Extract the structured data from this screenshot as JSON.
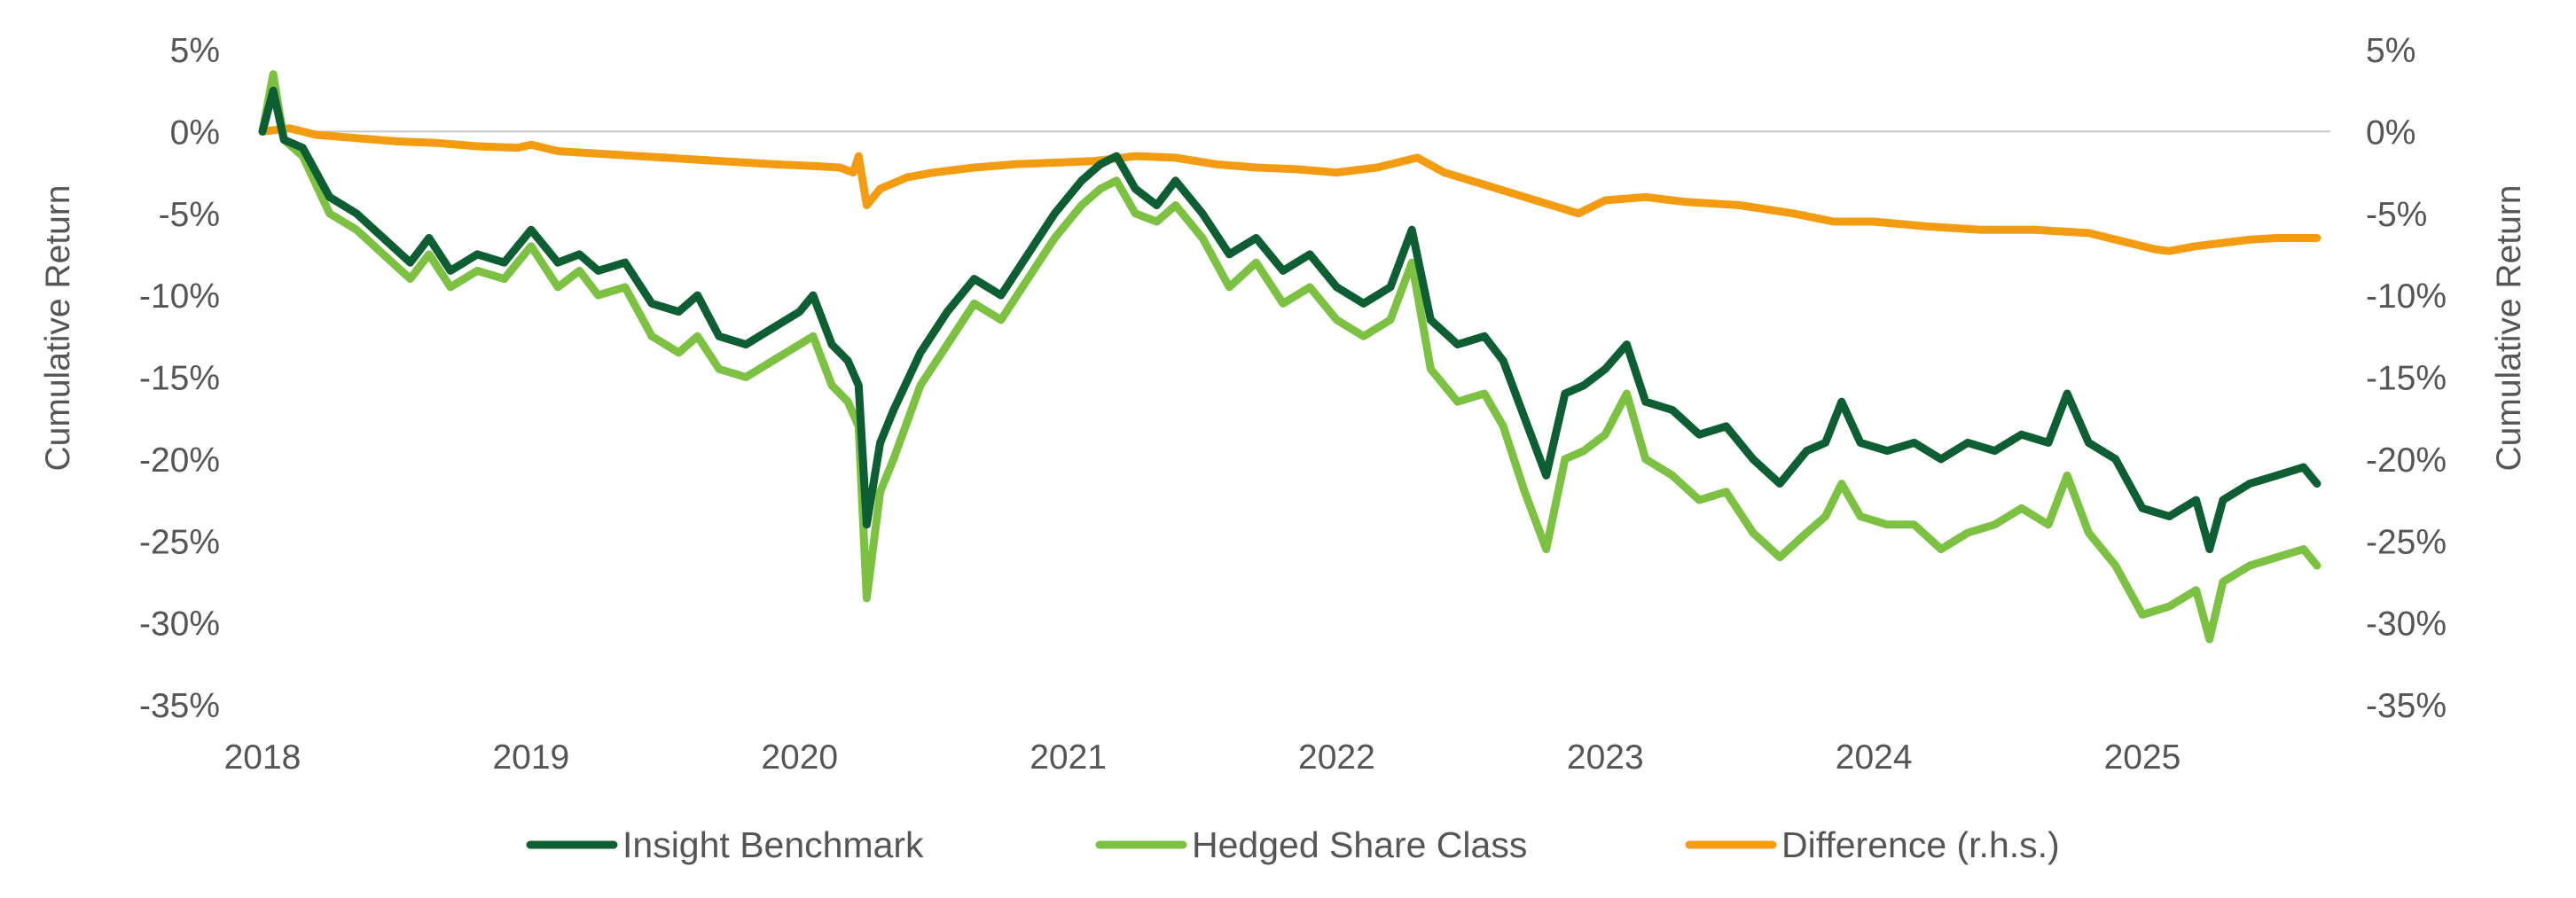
{
  "chart_data": {
    "type": "line",
    "title": "",
    "xlabel": "",
    "ylabel": "Cumulative Return",
    "y2label": "Cumulative Return",
    "x_ticks": [
      "2018",
      "2019",
      "2020",
      "2021",
      "2022",
      "2023",
      "2024",
      "2025"
    ],
    "x_tick_values": [
      2018,
      2019,
      2020,
      2021,
      2022,
      2023,
      2024,
      2025
    ],
    "xlim": [
      2018,
      2025.7
    ],
    "ylim": [
      -35,
      5
    ],
    "y2lim": [
      -35,
      5
    ],
    "y_ticks": [
      5,
      0,
      -5,
      -10,
      -15,
      -20,
      -25,
      -30,
      -35
    ],
    "y_tick_labels": [
      "5%",
      "0%",
      "-5%",
      "-10%",
      "-15%",
      "-20%",
      "-25%",
      "-30%",
      "-35%"
    ],
    "y2_ticks": [
      5,
      0,
      -5,
      -10,
      -15,
      -20,
      -25,
      -30,
      -35
    ],
    "y2_tick_labels": [
      "5%",
      "0%",
      "-5%",
      "-10%",
      "-15%",
      "-20%",
      "-25%",
      "-30%",
      "-35%"
    ],
    "zero_line": true,
    "grid": false,
    "legend_position": "bottom",
    "series": [
      {
        "name": "Insight Benchmark",
        "color": "#0d5e32",
        "axis": "left",
        "x": [
          2018.0,
          2018.04,
          2018.08,
          2018.15,
          2018.25,
          2018.35,
          2018.45,
          2018.55,
          2018.62,
          2018.7,
          2018.8,
          2018.9,
          2019.0,
          2019.1,
          2019.18,
          2019.25,
          2019.35,
          2019.45,
          2019.55,
          2019.62,
          2019.7,
          2019.8,
          2019.9,
          2020.0,
          2020.05,
          2020.12,
          2020.18,
          2020.22,
          2020.25,
          2020.3,
          2020.35,
          2020.45,
          2020.55,
          2020.65,
          2020.75,
          2020.85,
          2020.95,
          2021.05,
          2021.12,
          2021.18,
          2021.25,
          2021.33,
          2021.4,
          2021.5,
          2021.6,
          2021.7,
          2021.8,
          2021.9,
          2022.0,
          2022.1,
          2022.2,
          2022.28,
          2022.35,
          2022.45,
          2022.55,
          2022.62,
          2022.7,
          2022.78,
          2022.85,
          2022.92,
          2023.0,
          2023.08,
          2023.15,
          2023.25,
          2023.35,
          2023.45,
          2023.55,
          2023.65,
          2023.75,
          2023.82,
          2023.88,
          2023.95,
          2024.05,
          2024.15,
          2024.25,
          2024.35,
          2024.45,
          2024.55,
          2024.65,
          2024.72,
          2024.8,
          2024.9,
          2025.0,
          2025.1,
          2025.2,
          2025.25,
          2025.3,
          2025.4,
          2025.5,
          2025.6,
          2025.65
        ],
        "values": [
          0.0,
          2.5,
          -0.5,
          -1.0,
          -4.0,
          -5.0,
          -6.5,
          -8.0,
          -6.5,
          -8.5,
          -7.5,
          -8.0,
          -6.0,
          -8.0,
          -7.5,
          -8.5,
          -8.0,
          -10.5,
          -11.0,
          -10.0,
          -12.5,
          -13.0,
          -12.0,
          -11.0,
          -10.0,
          -13.0,
          -14.0,
          -15.5,
          -24.0,
          -19.0,
          -17.0,
          -13.5,
          -11.0,
          -9.0,
          -10.0,
          -7.5,
          -5.0,
          -3.0,
          -2.0,
          -1.5,
          -3.5,
          -4.5,
          -3.0,
          -5.0,
          -7.5,
          -6.5,
          -8.5,
          -7.5,
          -9.5,
          -10.5,
          -9.5,
          -6.0,
          -11.5,
          -13.0,
          -12.5,
          -14.0,
          -17.5,
          -21.0,
          -16.0,
          -15.5,
          -14.5,
          -13.0,
          -16.5,
          -17.0,
          -18.5,
          -18.0,
          -20.0,
          -21.5,
          -19.5,
          -19.0,
          -16.5,
          -19.0,
          -19.5,
          -19.0,
          -20.0,
          -19.0,
          -19.5,
          -18.5,
          -19.0,
          -16.0,
          -19.0,
          -20.0,
          -23.0,
          -23.5,
          -22.5,
          -25.5,
          -22.5,
          -21.5,
          -21.0,
          -20.5,
          -21.5
        ]
      },
      {
        "name": "Hedged Share Class",
        "color": "#7cc142",
        "axis": "left",
        "x": [
          2018.0,
          2018.04,
          2018.08,
          2018.15,
          2018.25,
          2018.35,
          2018.45,
          2018.55,
          2018.62,
          2018.7,
          2018.8,
          2018.9,
          2019.0,
          2019.1,
          2019.18,
          2019.25,
          2019.35,
          2019.45,
          2019.55,
          2019.62,
          2019.7,
          2019.8,
          2019.9,
          2020.0,
          2020.05,
          2020.12,
          2020.18,
          2020.22,
          2020.25,
          2020.3,
          2020.35,
          2020.45,
          2020.55,
          2020.65,
          2020.75,
          2020.85,
          2020.95,
          2021.05,
          2021.12,
          2021.18,
          2021.25,
          2021.33,
          2021.4,
          2021.5,
          2021.6,
          2021.7,
          2021.8,
          2021.9,
          2022.0,
          2022.1,
          2022.2,
          2022.28,
          2022.35,
          2022.45,
          2022.55,
          2022.62,
          2022.7,
          2022.78,
          2022.85,
          2022.92,
          2023.0,
          2023.08,
          2023.15,
          2023.25,
          2023.35,
          2023.45,
          2023.55,
          2023.65,
          2023.75,
          2023.82,
          2023.88,
          2023.95,
          2024.05,
          2024.15,
          2024.25,
          2024.35,
          2024.45,
          2024.55,
          2024.65,
          2024.72,
          2024.8,
          2024.9,
          2025.0,
          2025.1,
          2025.2,
          2025.25,
          2025.3,
          2025.4,
          2025.5,
          2025.6,
          2025.65
        ],
        "values": [
          0.0,
          3.5,
          -0.5,
          -1.5,
          -5.0,
          -6.0,
          -7.5,
          -9.0,
          -7.5,
          -9.5,
          -8.5,
          -9.0,
          -7.0,
          -9.5,
          -8.5,
          -10.0,
          -9.5,
          -12.5,
          -13.5,
          -12.5,
          -14.5,
          -15.0,
          -14.0,
          -13.0,
          -12.5,
          -15.5,
          -16.5,
          -18.0,
          -28.5,
          -22.0,
          -20.0,
          -15.5,
          -13.0,
          -10.5,
          -11.5,
          -9.0,
          -6.5,
          -4.5,
          -3.5,
          -3.0,
          -5.0,
          -5.5,
          -4.5,
          -6.5,
          -9.5,
          -8.0,
          -10.5,
          -9.5,
          -11.5,
          -12.5,
          -11.5,
          -8.0,
          -14.5,
          -16.5,
          -16.0,
          -18.0,
          -22.0,
          -25.5,
          -20.0,
          -19.5,
          -18.5,
          -16.0,
          -20.0,
          -21.0,
          -22.5,
          -22.0,
          -24.5,
          -26.0,
          -24.5,
          -23.5,
          -21.5,
          -23.5,
          -24.0,
          -24.0,
          -25.5,
          -24.5,
          -24.0,
          -23.0,
          -24.0,
          -21.0,
          -24.5,
          -26.5,
          -29.5,
          -29.0,
          -28.0,
          -31.0,
          -27.5,
          -26.5,
          -26.0,
          -25.5,
          -26.5
        ]
      },
      {
        "name": "Difference (r.h.s.)",
        "color": "#f39c12",
        "axis": "right",
        "x": [
          2018.0,
          2018.1,
          2018.2,
          2018.35,
          2018.5,
          2018.65,
          2018.8,
          2018.95,
          2019.0,
          2019.1,
          2019.3,
          2019.5,
          2019.7,
          2019.9,
          2020.05,
          2020.15,
          2020.2,
          2020.22,
          2020.25,
          2020.3,
          2020.4,
          2020.5,
          2020.65,
          2020.8,
          2020.95,
          2021.1,
          2021.25,
          2021.4,
          2021.55,
          2021.7,
          2021.85,
          2022.0,
          2022.15,
          2022.3,
          2022.4,
          2022.5,
          2022.6,
          2022.7,
          2022.8,
          2022.9,
          2023.0,
          2023.15,
          2023.3,
          2023.5,
          2023.7,
          2023.85,
          2024.0,
          2024.2,
          2024.4,
          2024.6,
          2024.8,
          2024.95,
          2025.05,
          2025.1,
          2025.2,
          2025.3,
          2025.4,
          2025.5,
          2025.6,
          2025.65
        ],
        "values": [
          0.0,
          0.2,
          -0.2,
          -0.4,
          -0.6,
          -0.7,
          -0.9,
          -1.0,
          -0.8,
          -1.2,
          -1.4,
          -1.6,
          -1.8,
          -2.0,
          -2.1,
          -2.2,
          -2.5,
          -1.5,
          -4.5,
          -3.5,
          -2.8,
          -2.5,
          -2.2,
          -2.0,
          -1.9,
          -1.8,
          -1.5,
          -1.6,
          -2.0,
          -2.2,
          -2.3,
          -2.5,
          -2.2,
          -1.6,
          -2.5,
          -3.0,
          -3.5,
          -4.0,
          -4.5,
          -5.0,
          -4.2,
          -4.0,
          -4.3,
          -4.5,
          -5.0,
          -5.5,
          -5.5,
          -5.8,
          -6.0,
          -6.0,
          -6.2,
          -6.8,
          -7.2,
          -7.3,
          -7.0,
          -6.8,
          -6.6,
          -6.5,
          -6.5,
          -6.5
        ]
      }
    ]
  }
}
